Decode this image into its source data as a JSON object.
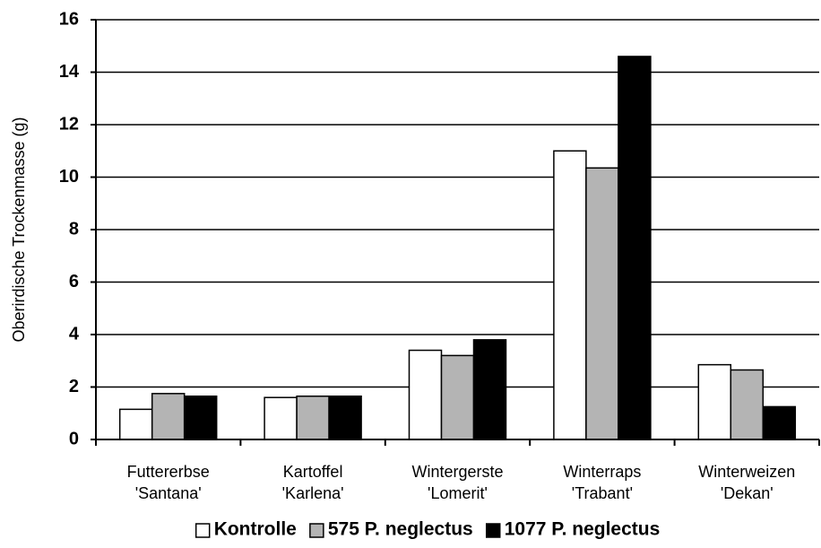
{
  "chart_data": {
    "type": "bar",
    "ylabel": "Oberirdische Trockenmasse (g)",
    "categories": [
      [
        "Futtererbse",
        "'Santana'"
      ],
      [
        "Kartoffel",
        "'Karlena'"
      ],
      [
        "Wintergerste",
        "'Lomerit'"
      ],
      [
        "Winterraps",
        "'Trabant'"
      ],
      [
        "Winterweizen",
        "'Dekan'"
      ]
    ],
    "series": [
      {
        "name": "Kontrolle",
        "color": "#ffffff",
        "values": [
          1.15,
          1.6,
          3.4,
          11.0,
          2.85
        ]
      },
      {
        "name": "575 P. neglectus",
        "color": "#b4b4b4",
        "values": [
          1.75,
          1.65,
          3.2,
          10.35,
          2.65
        ]
      },
      {
        "name": "1077 P. neglectus",
        "color": "#000000",
        "values": [
          1.65,
          1.65,
          3.8,
          14.6,
          1.25
        ]
      }
    ],
    "ylim": [
      0,
      16
    ],
    "yticks": [
      0,
      2,
      4,
      6,
      8,
      10,
      12,
      14,
      16
    ],
    "grid": true,
    "legend": "bottom"
  }
}
